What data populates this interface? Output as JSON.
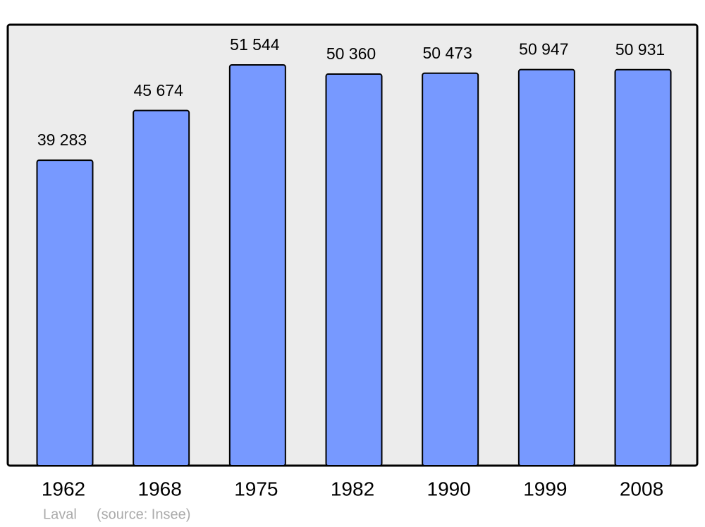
{
  "chart_data": {
    "type": "bar",
    "title": "Laval",
    "source": "(source: Insee)",
    "categories": [
      "1962",
      "1968",
      "1975",
      "1982",
      "1990",
      "1999",
      "2008"
    ],
    "values": [
      39283,
      45674,
      51544,
      50360,
      50473,
      50947,
      50931
    ],
    "value_labels": [
      "39 283",
      "45 674",
      "51 544",
      "50 360",
      "50 473",
      "50 947",
      "50 931"
    ],
    "color": "#7799ff"
  }
}
